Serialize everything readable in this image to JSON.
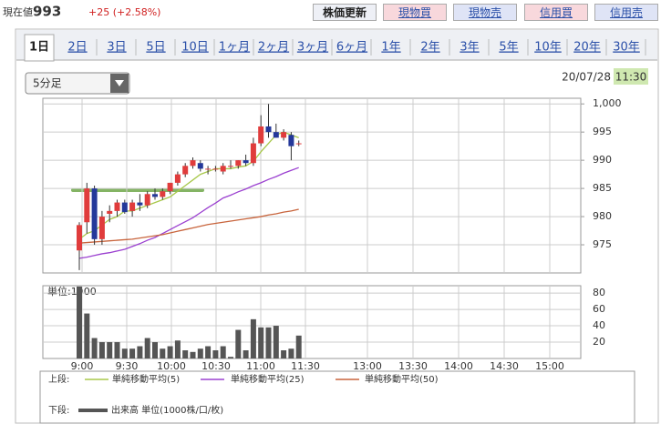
{
  "header": {
    "price_label": "現在値",
    "price": 993,
    "change": "+25 (+2.58%)",
    "buttons": [
      "株価更新",
      "現物買",
      "現物売",
      "信用買",
      "信用売"
    ]
  },
  "tabs": [
    "1日",
    "2日",
    "3日",
    "5日",
    "10日",
    "1ヶ月",
    "2ヶ月",
    "3ヶ月",
    "6ヶ月",
    "1年",
    "2年",
    "3年",
    "5年",
    "10年",
    "20年",
    "30年"
  ],
  "interval": "5分足",
  "date": "20/07/28",
  "time": "11:30",
  "legend": {
    "upper": "上段:",
    "lower": "下段:"
  },
  "chart_data": [
    {
      "type": "candlestick",
      "up_color": "#e03c3c",
      "down_color": "#24389a",
      "open": [
        974,
        979,
        985,
        976,
        980.5,
        981,
        982.5,
        981,
        982.5,
        982,
        984,
        983.5,
        984.5,
        986,
        987.5,
        989,
        989.5,
        988.5,
        988.5,
        988,
        989,
        989,
        990,
        989.5,
        993,
        996,
        995,
        994,
        994.5,
        993
      ],
      "high": [
        979,
        986,
        985.5,
        981,
        982,
        983,
        983,
        983,
        984,
        984.5,
        985,
        985,
        986,
        988,
        989.5,
        990.5,
        990,
        989,
        989,
        989.5,
        990,
        990,
        991,
        994,
        998,
        1000,
        996.5,
        995.5,
        995,
        993.5
      ],
      "low": [
        970.5,
        977,
        975,
        975,
        979,
        980,
        980.5,
        980,
        981,
        981.5,
        983,
        983,
        984,
        985.5,
        987,
        988.5,
        988,
        987.5,
        988,
        987.5,
        988.5,
        988.5,
        989,
        989,
        992.5,
        994,
        994,
        993.5,
        990,
        992.5
      ],
      "close": [
        978.5,
        985,
        976,
        980,
        981,
        982.5,
        980.8,
        982.5,
        982,
        984,
        983.5,
        984.5,
        986,
        987.5,
        989,
        990,
        988.5,
        988.5,
        988.5,
        989,
        989,
        990,
        989.5,
        993,
        996,
        995,
        994,
        995,
        992.5,
        993
      ],
      "series": [
        {
          "name": "単純移動平均(5)",
          "color": "#a8c84a",
          "values": [
            976,
            977,
            977.5,
            978.5,
            979.5,
            980,
            981,
            981,
            981.5,
            982,
            982.5,
            983,
            983.5,
            984.5,
            985.5,
            986.5,
            987.5,
            988,
            988.5,
            988.5,
            988.5,
            988.8,
            989,
            989.8,
            991.5,
            993,
            994.5,
            995,
            994.5,
            994
          ]
        },
        {
          "name": "単純移動平均(25)",
          "color": "#9b40d0",
          "values": [
            972.6,
            972.8,
            973.1,
            973.4,
            973.6,
            973.9,
            974.2,
            974.7,
            975.2,
            975.8,
            976.3,
            977.0,
            977.7,
            978.4,
            979.1,
            979.8,
            980.7,
            981.6,
            982.4,
            983.3,
            983.8,
            984.4,
            984.9,
            985.5,
            986,
            986.6,
            987.1,
            987.7,
            988.2,
            988.7
          ]
        },
        {
          "name": "単純移動平均(50)",
          "color": "#c8643c",
          "values": [
            975.3,
            975.4,
            975.5,
            975.6,
            975.7,
            975.8,
            975.9,
            976.0,
            976.2,
            976.4,
            976.6,
            976.8,
            977.1,
            977.4,
            977.7,
            978.0,
            978.3,
            978.6,
            978.8,
            979.0,
            979.2,
            979.4,
            979.6,
            979.8,
            980.0,
            980.3,
            980.5,
            980.8,
            981.0,
            981.3
          ]
        }
      ],
      "ylim": [
        970,
        1001
      ],
      "yticks": [
        975,
        980,
        985,
        990,
        995,
        {
          "value": 1000,
          "label": "1,000"
        }
      ],
      "grid": true
    },
    {
      "type": "bar",
      "title": "単位:1000",
      "series": [
        {
          "name": "出来高 単位(1000株/口/枚)",
          "color": "#555555",
          "values": [
            88,
            55,
            25,
            20,
            20,
            20,
            12,
            12,
            15,
            25,
            20,
            12,
            15,
            22,
            10,
            8,
            12,
            15,
            10,
            15,
            2,
            35,
            10,
            48,
            38,
            38,
            40,
            10,
            12,
            28
          ]
        }
      ],
      "ylim": [
        0,
        89
      ],
      "yticks": [
        20,
        40,
        60,
        80
      ],
      "xticks": [
        "9:00",
        "9:30",
        "10:00",
        "10:30",
        "11:00",
        "11:30",
        "13:00",
        "13:30",
        "14:00",
        "14:30",
        "15:00"
      ],
      "grid": true
    }
  ]
}
